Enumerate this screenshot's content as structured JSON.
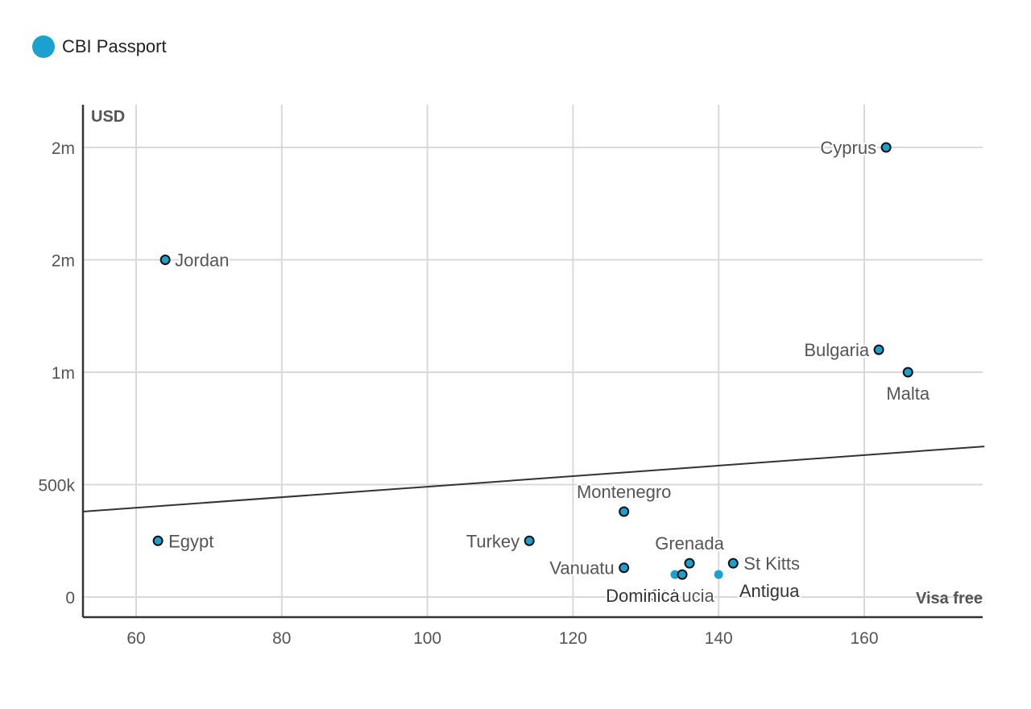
{
  "legend": {
    "label": "CBI Passport",
    "color": "#1ba1d0"
  },
  "chart_data": {
    "type": "scatter",
    "title": "",
    "xlabel": "Visa free",
    "ylabel": "USD",
    "xlim": [
      52.7,
      176.5
    ],
    "ylim": [
      -90000,
      2190000
    ],
    "grid": true,
    "legend_position": "top-left",
    "x_ticks": [
      60,
      80,
      100,
      120,
      140,
      160
    ],
    "x_tick_labels": [
      "60",
      "80",
      "100",
      "120",
      "140",
      "160"
    ],
    "y_ticks": [
      0,
      500000,
      1000000,
      1500000,
      2000000
    ],
    "y_tick_labels": [
      "0",
      "500k",
      "1m",
      "2m",
      "2m"
    ],
    "series": [
      {
        "name": "CBI Passport",
        "color": "#1ba1d0",
        "points": [
          {
            "label": "Cyprus",
            "x": 163,
            "y": 2000000,
            "outlined": true
          },
          {
            "label": "Jordan",
            "x": 64,
            "y": 1500000,
            "outlined": true
          },
          {
            "label": "Bulgaria",
            "x": 162,
            "y": 1100000,
            "outlined": true
          },
          {
            "label": "Malta",
            "x": 166,
            "y": 1000000,
            "outlined": true
          },
          {
            "label": "Montenegro",
            "x": 127,
            "y": 380000,
            "outlined": true
          },
          {
            "label": "Egypt",
            "x": 63,
            "y": 250000,
            "outlined": true
          },
          {
            "label": "Turkey",
            "x": 114,
            "y": 250000,
            "outlined": true
          },
          {
            "label": "Grenada",
            "x": 136,
            "y": 150000,
            "outlined": true
          },
          {
            "label": "St Kitts",
            "x": 142,
            "y": 150000,
            "outlined": true
          },
          {
            "label": "Vanuatu",
            "x": 127,
            "y": 130000,
            "outlined": true
          },
          {
            "label": "St Lucia",
            "x": 135,
            "y": 100000,
            "outlined": true
          },
          {
            "label": "Dominica",
            "x": 134,
            "y": 100000,
            "outlined": false
          },
          {
            "label": "Antigua",
            "x": 140,
            "y": 100000,
            "outlined": false
          }
        ]
      }
    ],
    "trendline": {
      "x": [
        52.7,
        176.5
      ],
      "y": [
        380000,
        670000
      ],
      "color": "#333333"
    }
  }
}
